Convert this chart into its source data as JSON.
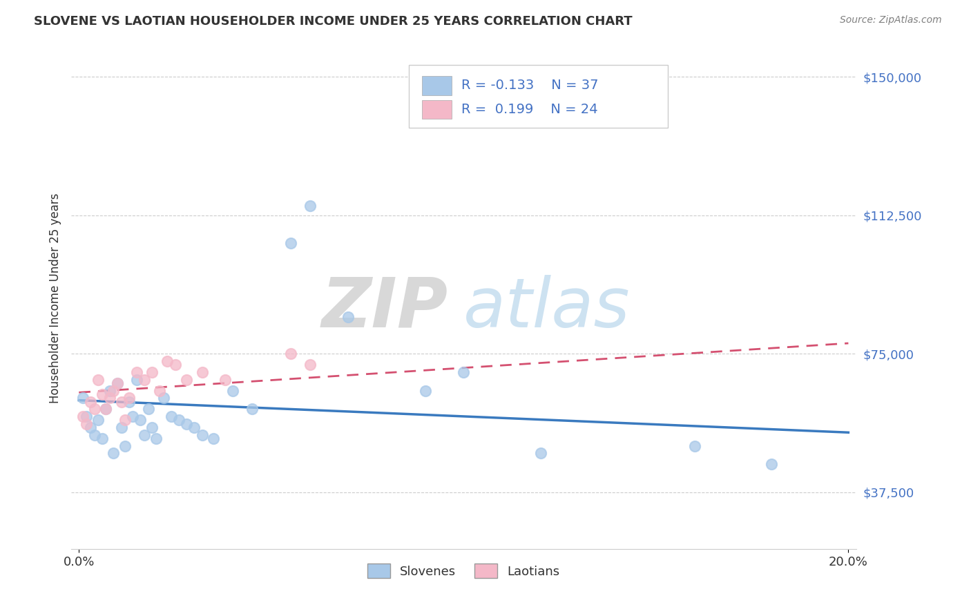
{
  "title": "SLOVENE VS LAOTIAN HOUSEHOLDER INCOME UNDER 25 YEARS CORRELATION CHART",
  "source": "Source: ZipAtlas.com",
  "ylabel_label": "Householder Income Under 25 years",
  "xlim": [
    -0.002,
    0.202
  ],
  "ylim": [
    22000,
    158000
  ],
  "yticks": [
    37500,
    75000,
    112500,
    150000
  ],
  "ytick_labels": [
    "$37,500",
    "$75,000",
    "$112,500",
    "$150,000"
  ],
  "xticks": [
    0.0,
    0.2
  ],
  "xtick_labels": [
    "0.0%",
    "20.0%"
  ],
  "slovene_x": [
    0.001,
    0.002,
    0.003,
    0.004,
    0.005,
    0.006,
    0.007,
    0.008,
    0.009,
    0.01,
    0.011,
    0.012,
    0.013,
    0.014,
    0.015,
    0.016,
    0.017,
    0.018,
    0.019,
    0.02,
    0.022,
    0.024,
    0.026,
    0.028,
    0.03,
    0.032,
    0.035,
    0.04,
    0.045,
    0.055,
    0.06,
    0.07,
    0.09,
    0.1,
    0.12,
    0.16,
    0.18
  ],
  "slovene_y": [
    63000,
    58000,
    55000,
    53000,
    57000,
    52000,
    60000,
    65000,
    48000,
    67000,
    55000,
    50000,
    62000,
    58000,
    68000,
    57000,
    53000,
    60000,
    55000,
    52000,
    63000,
    58000,
    57000,
    56000,
    55000,
    53000,
    52000,
    65000,
    60000,
    105000,
    115000,
    85000,
    65000,
    70000,
    48000,
    50000,
    45000
  ],
  "laotian_x": [
    0.001,
    0.002,
    0.003,
    0.004,
    0.005,
    0.006,
    0.007,
    0.008,
    0.009,
    0.01,
    0.011,
    0.012,
    0.013,
    0.015,
    0.017,
    0.019,
    0.021,
    0.023,
    0.025,
    0.028,
    0.032,
    0.038,
    0.055,
    0.06
  ],
  "laotian_y": [
    58000,
    56000,
    62000,
    60000,
    68000,
    64000,
    60000,
    63000,
    65000,
    67000,
    62000,
    57000,
    63000,
    70000,
    68000,
    70000,
    65000,
    73000,
    72000,
    68000,
    70000,
    68000,
    75000,
    72000
  ],
  "slovene_color": "#a8c8e8",
  "laotian_color": "#f4b8c8",
  "slovene_line_color": "#3a7abf",
  "laotian_line_color": "#d45070",
  "slovene_line_style": "solid",
  "laotian_line_style": "dashed",
  "R_slovene": -0.133,
  "N_slovene": 37,
  "R_laotian": 0.199,
  "N_laotian": 24,
  "background_color": "#ffffff",
  "grid_color": "#cccccc",
  "watermark_zip": "ZIP",
  "watermark_atlas": "atlas",
  "title_color": "#333333",
  "source_color": "#808080",
  "tick_label_color": "#4472c4",
  "legend_text_color": "#4472c4"
}
